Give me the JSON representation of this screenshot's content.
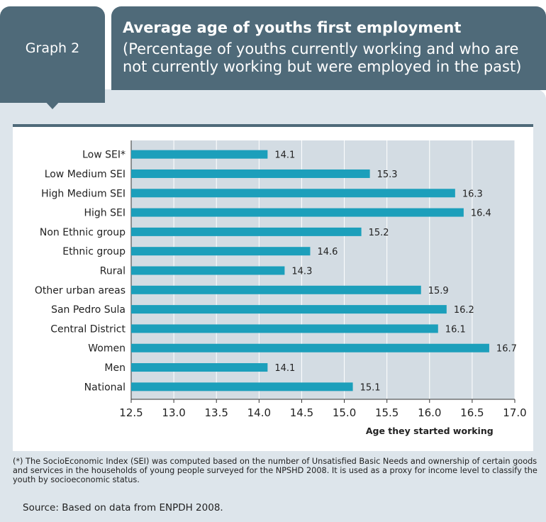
{
  "graph_label": "Graph 2",
  "header": {
    "title": "Average age of youths first employment",
    "subtitle": "(Percentage of youths currently working and who are not currently working but were employed in the past)"
  },
  "colors": {
    "header_bg": "#4f6a79",
    "panel_bg": "#dde5eb",
    "plot_bg": "#d3dce3",
    "bar": "#1c9fbb"
  },
  "chart_data": {
    "type": "bar",
    "orientation": "horizontal",
    "categories": [
      "Low SEI*",
      "Low Medium SEI",
      "High Medium SEI",
      "High SEI",
      "Non Ethnic group",
      "Ethnic group",
      "Rural",
      "Other urban areas",
      "San Pedro Sula",
      "Central District",
      "Women",
      "Men",
      "National"
    ],
    "values": [
      14.1,
      15.3,
      16.3,
      16.4,
      15.2,
      14.6,
      14.3,
      15.9,
      16.2,
      16.1,
      16.7,
      14.1,
      15.1
    ],
    "value_labels": [
      "14.1",
      "15.3",
      "16.3",
      "16.4",
      "15.2",
      "14.6",
      "14.3",
      "15.9",
      "16.2",
      "16.1",
      "16.7",
      "14.1",
      "15.1"
    ],
    "xlim": [
      12.5,
      17.0
    ],
    "xticks": [
      "12.5",
      "13.0",
      "13.5",
      "14.0",
      "14.5",
      "15.0",
      "15.5",
      "16.0",
      "16.5",
      "17.0"
    ],
    "xlabel": "Age they started working",
    "grid": true
  },
  "footnote": "(*) The SocioEconomic Index (SEI) was computed based on the number of Unsatisfied Basic Needs and ownership of certain goods and services in the households of young people surveyed for the NPSHD 2008. It is used as a proxy for income level to classify the youth by socioeconomic status.",
  "source": "Source: Based on data from ENPDH 2008."
}
